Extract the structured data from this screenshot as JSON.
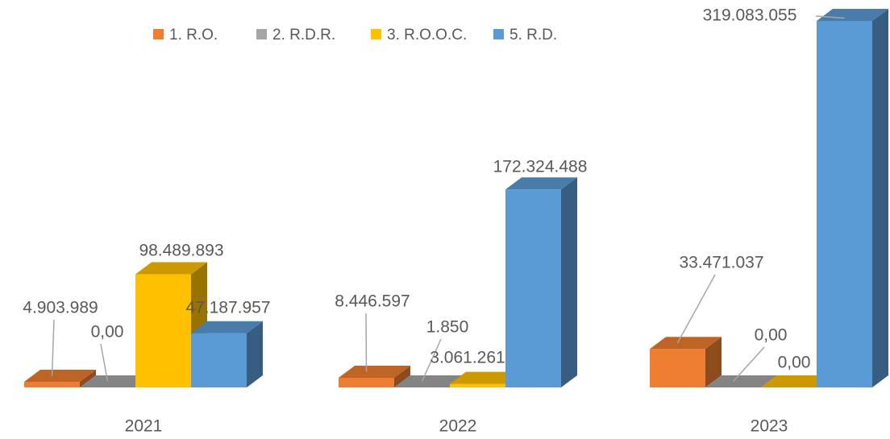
{
  "chart_data": {
    "type": "bar3d",
    "categories": [
      "2021",
      "2022",
      "2023"
    ],
    "series": [
      {
        "name": "1. R.O.",
        "color": "#ED7D31",
        "values": [
          4903989,
          8446597,
          33471037
        ],
        "value_labels": [
          "4.903.989",
          "8.446.597",
          "33.471.037"
        ]
      },
      {
        "name": "2. R.D.R.",
        "color": "#A5A5A5",
        "values": [
          0,
          1850,
          0
        ],
        "value_labels": [
          "0,00",
          "1.850",
          "0,00"
        ]
      },
      {
        "name": "3. R.O.O.C.",
        "color": "#FFC000",
        "values": [
          98489893,
          3061261,
          0
        ],
        "value_labels": [
          "98.489.893",
          "3.061.261",
          "0,00"
        ]
      },
      {
        "name": "5. R.D.",
        "color": "#5B9BD5",
        "values": [
          47187957,
          172324488,
          319083055
        ],
        "value_labels": [
          "47.187.957",
          "172.324.488",
          "319.083.055"
        ]
      }
    ],
    "legend": "top"
  }
}
